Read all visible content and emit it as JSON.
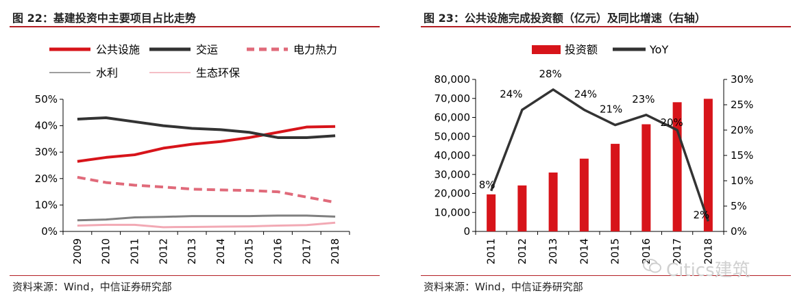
{
  "chart_data": [
    {
      "type": "line",
      "title": "图 22：基建投资中主要项目占比走势",
      "source": "资料来源：Wind，中信证券研究部",
      "categories": [
        "2009",
        "2010",
        "2011",
        "2012",
        "2013",
        "2014",
        "2015",
        "2016",
        "2017",
        "2018"
      ],
      "y_ticks": [
        "0%",
        "10%",
        "20%",
        "30%",
        "40%",
        "50%"
      ],
      "ylim": [
        0,
        50
      ],
      "legend_placement": "top",
      "grid": false,
      "series": [
        {
          "name": "公共设施",
          "color": "#d7141a",
          "style": "solid-thick",
          "values": [
            26.5,
            28,
            29,
            31.5,
            33,
            34,
            35.5,
            37.5,
            39.5,
            39.7
          ]
        },
        {
          "name": "交运",
          "color": "#333333",
          "style": "solid-thick",
          "values": [
            42.5,
            43,
            41.5,
            40,
            39,
            38.5,
            37.5,
            35.5,
            35.5,
            36.2
          ]
        },
        {
          "name": "电力热力",
          "color": "#e06a7a",
          "style": "dashed",
          "values": [
            20.5,
            18.5,
            17.5,
            16.8,
            16,
            15.7,
            15.5,
            15,
            13,
            11
          ]
        },
        {
          "name": "水利",
          "color": "#7f7f7f",
          "style": "solid-thin",
          "values": [
            4.2,
            4.5,
            5.3,
            5.5,
            5.8,
            5.8,
            5.8,
            6,
            6,
            5.6
          ]
        },
        {
          "name": "生态环保",
          "color": "#f2a9b4",
          "style": "solid-thin",
          "values": [
            2.2,
            2.5,
            2.5,
            1.6,
            1.7,
            1.8,
            1.9,
            2.2,
            2.4,
            3.3
          ]
        }
      ]
    },
    {
      "type": "bar",
      "title": "图 23：公共设施完成投资额（亿元）及同比增速（右轴）",
      "source": "资料来源：Wind，中信证券研究部",
      "categories": [
        "2011",
        "2012",
        "2013",
        "2014",
        "2015",
        "2016",
        "2017",
        "2018"
      ],
      "y_ticks": [
        "0",
        "10,000",
        "20,000",
        "30,000",
        "40,000",
        "50,000",
        "60,000",
        "70,000",
        "80,000"
      ],
      "ylim": [
        0,
        80000
      ],
      "y2_ticks": [
        "0%",
        "5%",
        "10%",
        "15%",
        "20%",
        "25%",
        "30%"
      ],
      "y2lim": [
        0,
        30
      ],
      "legend_placement": "top",
      "grid": false,
      "series": [
        {
          "name": "投资额",
          "type": "bar",
          "color": "#d7141a",
          "values": [
            19500,
            24200,
            31000,
            38300,
            46100,
            56400,
            68000,
            69800
          ]
        },
        {
          "name": "YoY",
          "type": "line",
          "axis": "right",
          "color": "#333333",
          "values": [
            8,
            24,
            28,
            24,
            21,
            23,
            20,
            2
          ],
          "labels": [
            "8%",
            "24%",
            "28%",
            "24%",
            "21%",
            "23%",
            "20%",
            "2%"
          ]
        }
      ]
    }
  ],
  "watermark": {
    "text": "Citics建筑",
    "icon": "wechat-icon"
  }
}
